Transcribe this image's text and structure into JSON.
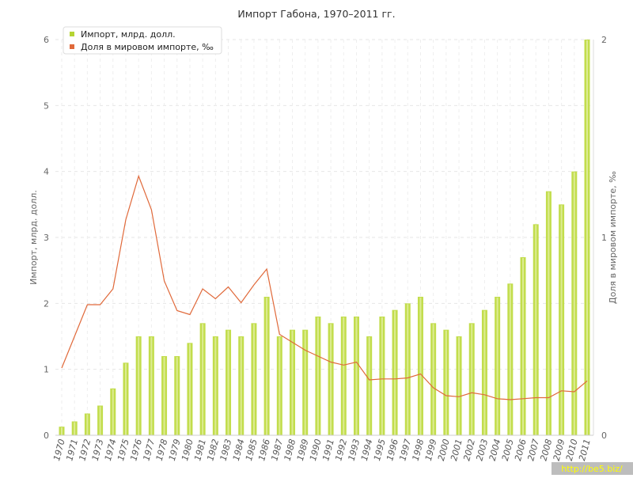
{
  "chart_data": {
    "type": "bar",
    "title": "Импорт Габона, 1970–2011 гг.",
    "xlabel": "",
    "ylabel": "Импорт, млрд. долл.",
    "y2label": "Доля в мировом импорте, ‰",
    "ylim": [
      0,
      6
    ],
    "y2lim": [
      0,
      2
    ],
    "yticks": [
      "0",
      "1",
      "2",
      "3",
      "4",
      "5",
      "6"
    ],
    "y2ticks": [
      "0",
      "1",
      "2"
    ],
    "grid": true,
    "legend_position": "top-left",
    "categories": [
      "1970",
      "1971",
      "1972",
      "1973",
      "1974",
      "1975",
      "1976",
      "1977",
      "1978",
      "1979",
      "1980",
      "1981",
      "1982",
      "1983",
      "1984",
      "1985",
      "1986",
      "1987",
      "1988",
      "1989",
      "1990",
      "1991",
      "1992",
      "1993",
      "1994",
      "1995",
      "1996",
      "1997",
      "1998",
      "1999",
      "2000",
      "2001",
      "2002",
      "2003",
      "2004",
      "2005",
      "2006",
      "2007",
      "2008",
      "2009",
      "2010",
      "2011"
    ],
    "series": [
      {
        "name": "Импорт, млрд. долл.",
        "type": "bar",
        "axis": "left",
        "color": "#c2dd4c",
        "values": [
          0.13,
          0.21,
          0.33,
          0.45,
          0.71,
          1.1,
          1.5,
          1.5,
          1.2,
          1.2,
          1.4,
          1.7,
          1.5,
          1.6,
          1.5,
          1.7,
          2.1,
          1.5,
          1.6,
          1.6,
          1.8,
          1.7,
          1.8,
          1.8,
          1.5,
          1.8,
          1.9,
          2.0,
          2.1,
          1.7,
          1.6,
          1.5,
          1.7,
          1.9,
          2.1,
          2.3,
          2.7,
          3.2,
          3.7,
          3.5,
          4.0,
          6.0
        ]
      },
      {
        "name": "Доля в мировом импорте, ‰",
        "type": "line",
        "axis": "right",
        "color": "#e0693a",
        "values": [
          0.34,
          0.5,
          0.66,
          0.66,
          0.74,
          1.09,
          1.31,
          1.14,
          0.78,
          0.63,
          0.61,
          0.74,
          0.69,
          0.75,
          0.67,
          0.76,
          0.84,
          0.51,
          0.47,
          0.43,
          0.4,
          0.37,
          0.355,
          0.37,
          0.28,
          0.285,
          0.285,
          0.29,
          0.31,
          0.24,
          0.2,
          0.195,
          0.215,
          0.205,
          0.185,
          0.18,
          0.185,
          0.19,
          0.19,
          0.225,
          0.22,
          0.275
        ]
      }
    ]
  },
  "watermark": "http://be5.biz/",
  "colors": {
    "bar": "#c2dd4c",
    "bar_highlight": "#e4f0a4",
    "line": "#e0693a",
    "plot_bg": "#ffffff",
    "grid": "#e6e6e6"
  }
}
